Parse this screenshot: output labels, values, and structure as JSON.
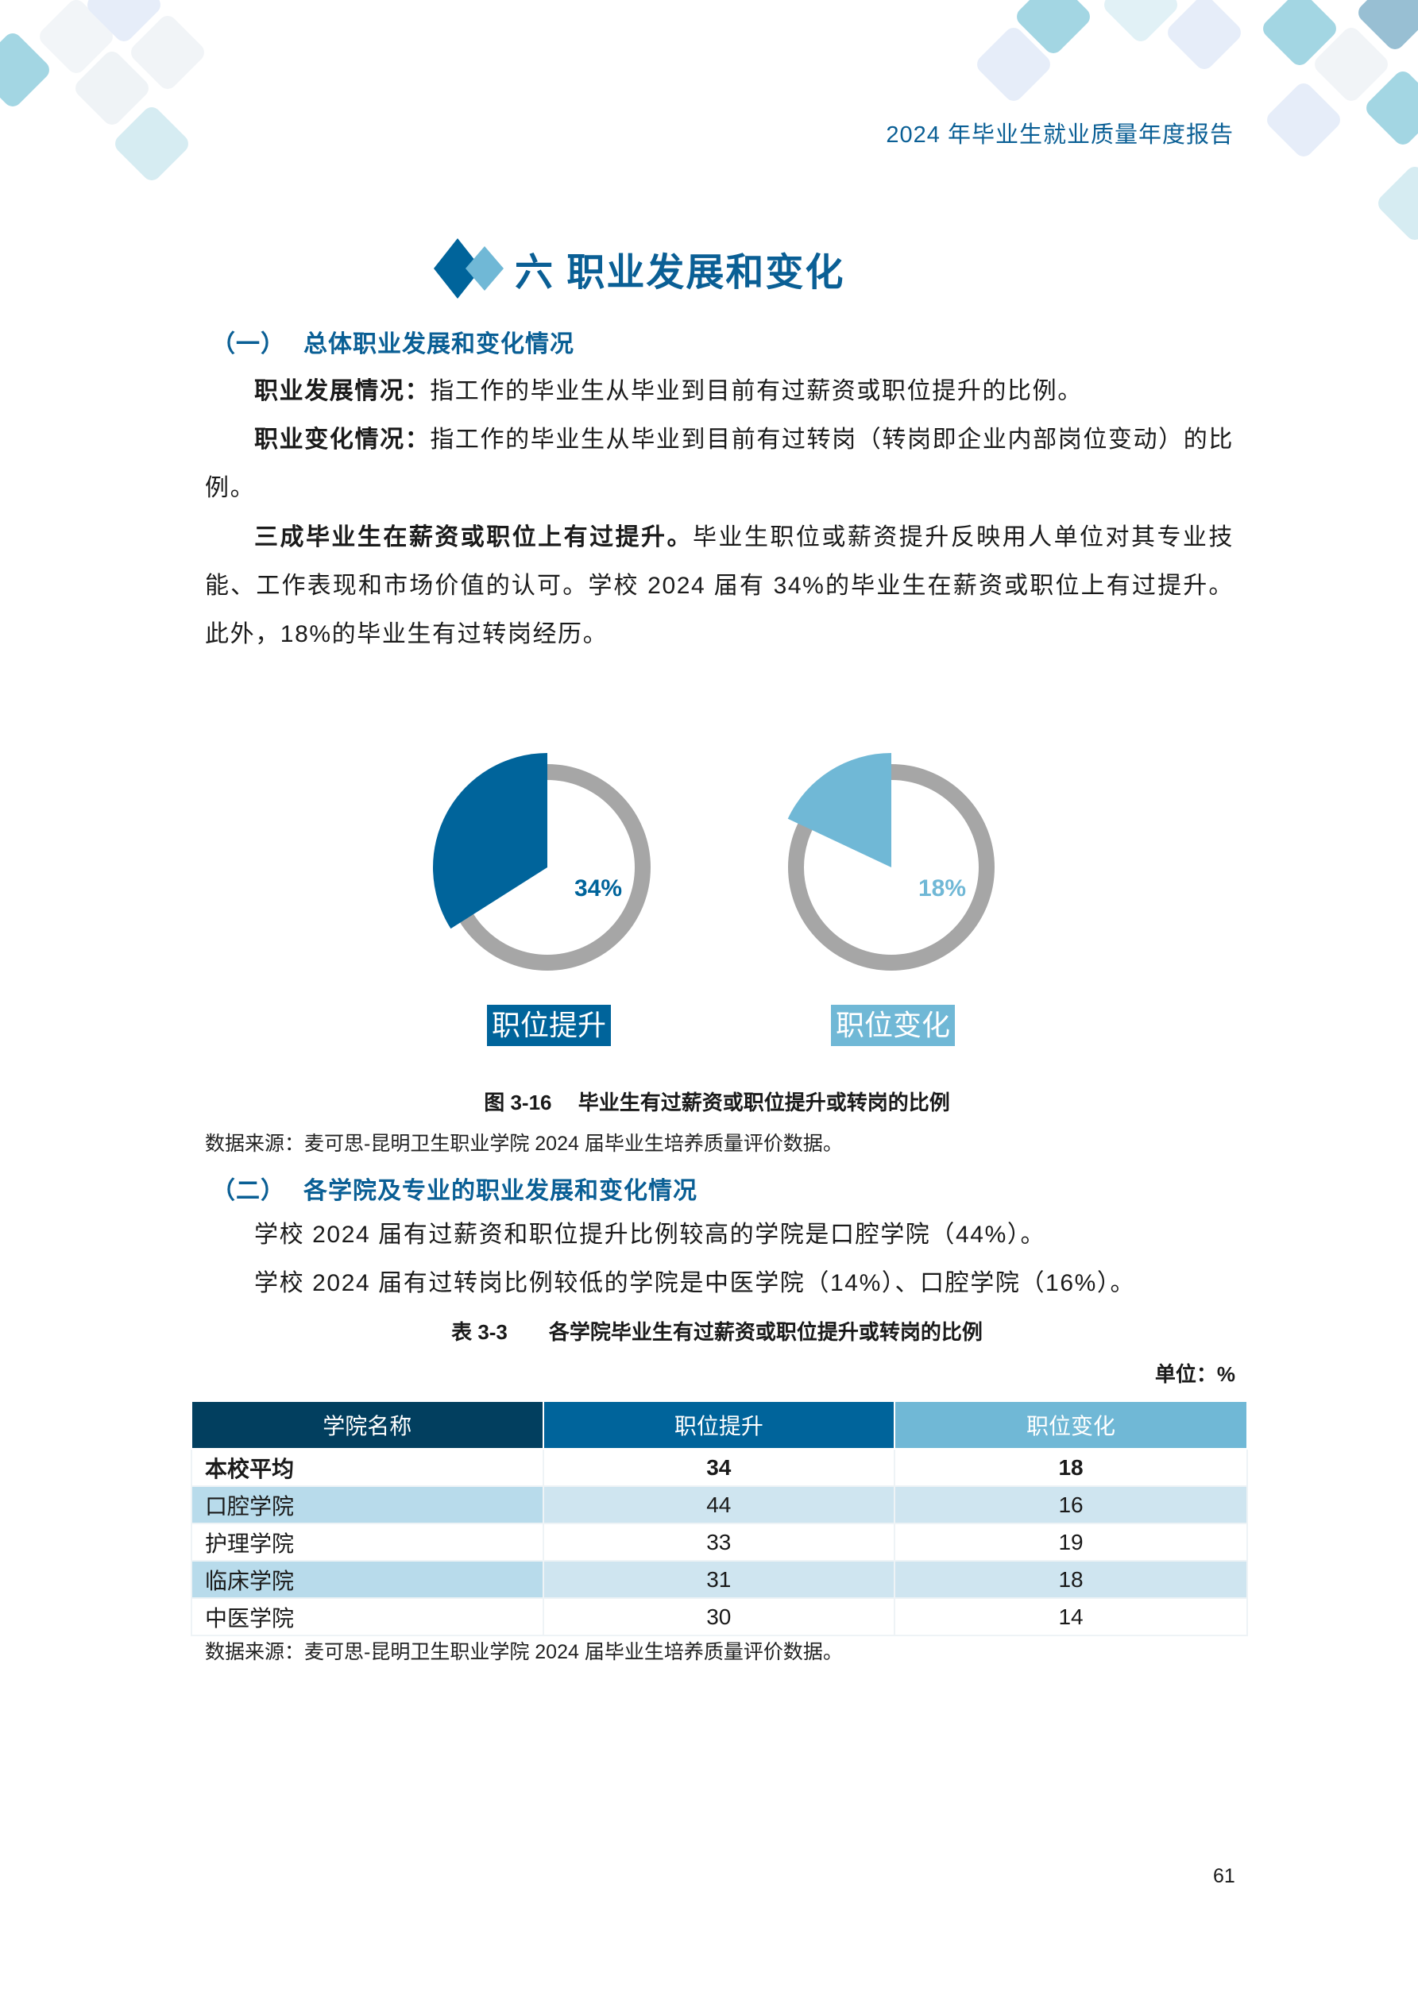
{
  "header": {
    "report_title": "2024 年毕业生就业质量年度报告"
  },
  "section": {
    "title": "六 职业发展和变化"
  },
  "sub1": {
    "num": "（一）",
    "title": "总体职业发展和变化情况"
  },
  "paragraphs1": [
    {
      "bold": "职业发展情况：",
      "text": "指工作的毕业生从毕业到目前有过薪资或职位提升的比例。"
    },
    {
      "bold": "职业变化情况：",
      "text": "指工作的毕业生从毕业到目前有过转岗（转岗即企业内部岗位变动）的比例。"
    },
    {
      "bold": "三成毕业生在薪资或职位上有过提升。",
      "text": "毕业生职位或薪资提升反映用人单位对其专业技能、工作表现和市场价值的认可。学校 2024 届有 34%的毕业生在薪资或职位上有过提升。此外，18%的毕业生有过转岗经历。"
    }
  ],
  "chart_data": {
    "type": "pie",
    "charts": [
      {
        "label": "职位提升",
        "value": 34,
        "value_label": "34%",
        "color": "#00649b",
        "rest_color": "#a6a6a6"
      },
      {
        "label": "职位变化",
        "value": 18,
        "value_label": "18%",
        "color": "#70b8d6",
        "rest_color": "#a6a6a6"
      }
    ]
  },
  "figure_caption": "图 3-16　 毕业生有过薪资或职位提升或转岗的比例",
  "source1": "数据来源：麦可思-昆明卫生职业学院 2024 届毕业生培养质量评价数据。",
  "sub2": {
    "num": "（二）",
    "title": "各学院及专业的职业发展和变化情况"
  },
  "paragraphs2": [
    "学校 2024 届有过薪资和职位提升比例较高的学院是口腔学院（44%）。",
    "学校 2024 届有过转岗比例较低的学院是中医学院（14%）、口腔学院（16%）。"
  ],
  "table_caption": "表 3-3　　各学院毕业生有过薪资或职位提升或转岗的比例",
  "unit": "单位：%",
  "table": {
    "headers": [
      "学院名称",
      "职位提升",
      "职位变化"
    ],
    "header_colors": [
      "#023f5f",
      "#00649b",
      "#70b8d6"
    ],
    "rows": [
      [
        "本校平均",
        "34",
        "18"
      ],
      [
        "口腔学院",
        "44",
        "16"
      ],
      [
        "护理学院",
        "33",
        "19"
      ],
      [
        "临床学院",
        "31",
        "18"
      ],
      [
        "中医学院",
        "30",
        "14"
      ]
    ]
  },
  "source2": "数据来源：麦可思-昆明卫生职业学院 2024 届毕业生培养质量评价数据。",
  "page_number": "61"
}
